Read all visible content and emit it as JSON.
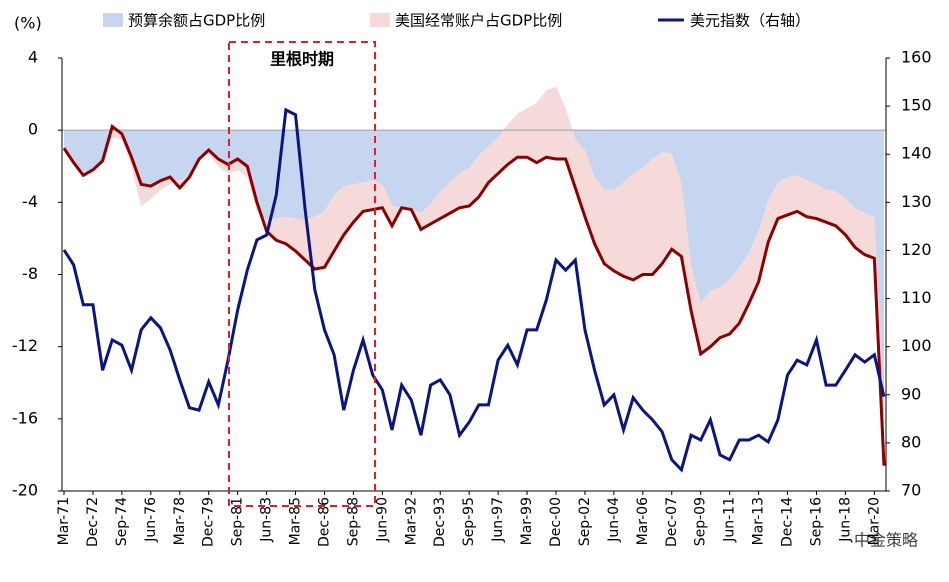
{
  "chart_data": {
    "type": "stacked_area_line",
    "y_label": "(%)",
    "annotation": "里根时期",
    "watermark": "中金策略",
    "categories": [
      "Mar-71",
      null,
      null,
      "Dec-72",
      null,
      null,
      "Sep-74",
      null,
      null,
      "Jun-76",
      null,
      null,
      "Mar-78",
      null,
      null,
      "Dec-79",
      null,
      null,
      "Sep-81",
      null,
      null,
      "Jun-83",
      null,
      null,
      "Mar-85",
      null,
      null,
      "Dec-86",
      null,
      null,
      "Sep-88",
      null,
      null,
      "Jun-90",
      null,
      null,
      "Mar-92",
      null,
      null,
      "Dec-93",
      null,
      null,
      "Sep-95",
      null,
      null,
      "Jun-97",
      null,
      null,
      "Mar-99",
      null,
      null,
      "Dec-00",
      null,
      null,
      "Sep-02",
      null,
      null,
      "Jun-04",
      null,
      null,
      "Mar-06",
      null,
      null,
      "Dec-07",
      null,
      null,
      "Sep-09",
      null,
      null,
      "Jun-11",
      null,
      null,
      "Mar-13",
      null,
      null,
      "Dec-14",
      null,
      null,
      "Sep-16",
      null,
      null,
      "Jun-18",
      null,
      null,
      "Mar-20",
      null
    ],
    "series": [
      {
        "name": "预算余额占GDP比例",
        "color": "#c6d6f1",
        "stack": true,
        "values": [
          -1.1,
          -1.9,
          -2.3,
          -2.2,
          -1.8,
          -0.4,
          -0.5,
          -2.0,
          -4.2,
          -3.8,
          -3.3,
          -3.0,
          -2.8,
          -2.5,
          -1.6,
          -1.3,
          -2.0,
          -2.4,
          -2.2,
          -2.6,
          -4.5,
          -5.0,
          -4.9,
          -4.8,
          -4.9,
          -5.0,
          -4.8,
          -4.5,
          -3.6,
          -3.1,
          -3.0,
          -2.9,
          -2.8,
          -3.0,
          -4.2,
          -4.3,
          -4.4,
          -4.6,
          -4.1,
          -3.4,
          -2.9,
          -2.4,
          -2.1,
          -1.4,
          -0.9,
          -0.4,
          0.3,
          0.9,
          1.2,
          1.5,
          2.2,
          2.4,
          1.2,
          -0.5,
          -1.1,
          -2.6,
          -3.3,
          -3.3,
          -2.9,
          -2.4,
          -2.1,
          -1.6,
          -1.2,
          -1.3,
          -3.0,
          -7.5,
          -9.6,
          -8.9,
          -8.7,
          -8.3,
          -7.6,
          -6.8,
          -5.6,
          -3.9,
          -2.9,
          -2.6,
          -2.5,
          -2.8,
          -3.0,
          -3.3,
          -3.4,
          -3.8,
          -4.3,
          -4.6,
          -4.8,
          -15.5
        ]
      },
      {
        "name": "美国经常账户占GDP比例",
        "color": "#f6d9d9",
        "edge_color": "#8b0000",
        "stack": true,
        "values": [
          0.1,
          0.1,
          -0.2,
          0.0,
          0.1,
          0.6,
          0.3,
          0.5,
          1.2,
          0.7,
          0.5,
          0.4,
          -0.4,
          -0.1,
          0.0,
          0.2,
          0.4,
          0.5,
          0.6,
          0.6,
          0.5,
          -0.6,
          -1.2,
          -1.5,
          -1.8,
          -2.2,
          -2.9,
          -3.1,
          -3.1,
          -2.7,
          -2.1,
          -1.6,
          -1.6,
          -1.3,
          -1.1,
          0.0,
          0.0,
          -0.9,
          -1.1,
          -1.5,
          -1.7,
          -1.9,
          -2.1,
          -2.3,
          -2.0,
          -2.0,
          -2.2,
          -2.4,
          -2.7,
          -3.3,
          -3.7,
          -4.0,
          -2.8,
          -2.7,
          -3.7,
          -3.7,
          -4.1,
          -4.5,
          -5.2,
          -5.9,
          -5.9,
          -6.4,
          -6.2,
          -5.3,
          -4.0,
          -2.5,
          -2.8,
          -3.1,
          -2.8,
          -3.0,
          -3.1,
          -2.8,
          -2.8,
          -2.3,
          -2.0,
          -2.1,
          -2.0,
          -2.0,
          -1.9,
          -1.8,
          -1.9,
          -2.0,
          -2.2,
          -2.3,
          -2.3,
          -3.1
        ]
      },
      {
        "name": "美元指数（右轴）",
        "color": "#0a1580",
        "axis": "y2",
        "values": [
          120.1,
          117.0,
          108.7,
          108.7,
          95.1,
          101.4,
          100.3,
          95.1,
          103.5,
          106.0,
          103.9,
          99.3,
          93.1,
          87.3,
          86.8,
          92.7,
          87.9,
          97.2,
          107.6,
          115.9,
          122.2,
          123.2,
          131.5,
          149.2,
          148.2,
          128.4,
          111.8,
          103.5,
          98.3,
          86.8,
          95.1,
          101.4,
          94.1,
          91.0,
          82.7,
          92.0,
          88.9,
          81.6,
          92.0,
          93.1,
          90.0,
          81.6,
          84.3,
          87.9,
          87.9,
          97.2,
          100.3,
          96.2,
          103.5,
          103.5,
          109.7,
          118.0,
          115.9,
          118.0,
          103.5,
          95.1,
          87.9,
          90.0,
          82.7,
          89.4,
          86.8,
          84.8,
          82.3,
          76.5,
          74.4,
          81.6,
          80.6,
          84.8,
          77.5,
          76.5,
          80.6,
          80.6,
          81.6,
          80.2,
          84.8,
          94.1,
          97.2,
          96.2,
          101.4,
          92.0,
          92.0,
          95.1,
          98.3,
          96.8,
          98.3,
          89.6
        ]
      }
    ],
    "ylim": [
      -20,
      4
    ],
    "yticks": [
      -20,
      -16,
      -12,
      -8,
      -4,
      0,
      4
    ],
    "y2lim": [
      70,
      160
    ],
    "y2ticks": [
      70,
      80,
      90,
      100,
      110,
      120,
      130,
      140,
      150,
      160
    ],
    "legend": "top"
  }
}
